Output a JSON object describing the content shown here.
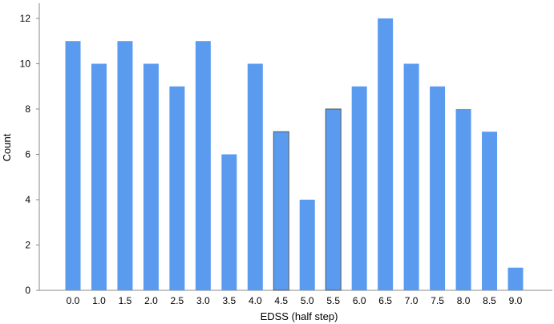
{
  "chart_data": {
    "type": "bar",
    "title": "",
    "xlabel": "EDSS (half step)",
    "ylabel": "Count",
    "categories": [
      "0.0",
      "1.0",
      "1.5",
      "2.0",
      "2.5",
      "3.0",
      "3.5",
      "4.0",
      "4.5",
      "5.0",
      "5.5",
      "6.0",
      "6.5",
      "7.0",
      "7.5",
      "8.0",
      "8.5",
      "9.0"
    ],
    "values": [
      11,
      10,
      11,
      10,
      9,
      11,
      6,
      10,
      7,
      4,
      8,
      9,
      12,
      10,
      9,
      8,
      7,
      1
    ],
    "ylim": [
      0,
      12.6
    ],
    "yticks": [
      0,
      2,
      4,
      6,
      8,
      10,
      12
    ],
    "grid": false,
    "legend": "none",
    "bar_color": "#5b9bef",
    "outlined_bar_color": "#555555",
    "outlined_categories": [
      "4.5",
      "5.5"
    ]
  }
}
